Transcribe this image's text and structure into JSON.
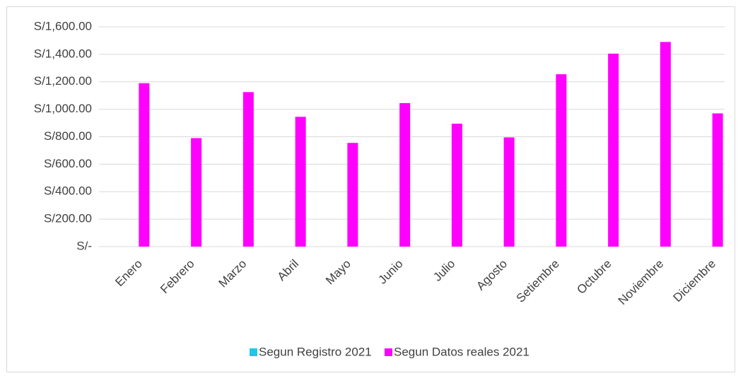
{
  "chart_data": {
    "type": "bar",
    "categories": [
      "Enero",
      "Febrero",
      "Marzo",
      "Abril",
      "Mayo",
      "Junio",
      "Julio",
      "Agosto",
      "Setiembre",
      "Octubre",
      "Noviembre",
      "Diciembre"
    ],
    "series": [
      {
        "name": "Segun Registro 2021",
        "color": "#1ec8e6",
        "values": [
          null,
          null,
          null,
          null,
          null,
          null,
          null,
          null,
          null,
          null,
          null,
          null
        ]
      },
      {
        "name": "Segun Datos reales 2021",
        "color": "#ff00ff",
        "values": [
          1190,
          790,
          1125,
          945,
          755,
          1045,
          895,
          795,
          1255,
          1405,
          1490,
          970
        ]
      }
    ],
    "ylim": [
      0,
      1600
    ],
    "yticks": [
      {
        "value": 0,
        "label": "S/-"
      },
      {
        "value": 200,
        "label": "S/200.00"
      },
      {
        "value": 400,
        "label": "S/400.00"
      },
      {
        "value": 600,
        "label": "S/600.00"
      },
      {
        "value": 800,
        "label": "S/800.00"
      },
      {
        "value": 1000,
        "label": "S/1,000.00"
      },
      {
        "value": 1200,
        "label": "S/1,200.00"
      },
      {
        "value": 1400,
        "label": "S/1,400.00"
      },
      {
        "value": 1600,
        "label": "S/1,600.00"
      }
    ],
    "grid": true,
    "legend": "bottom"
  }
}
